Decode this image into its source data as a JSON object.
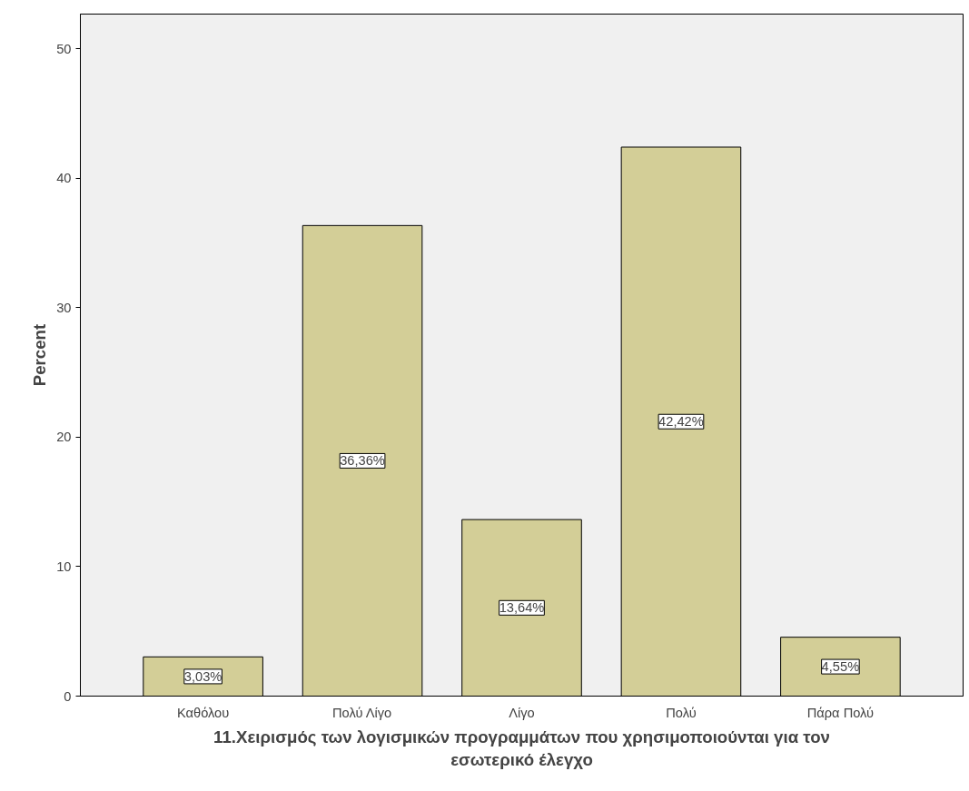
{
  "chart_data": {
    "type": "bar",
    "xlabel": "11.Χειρισμός των λογισμικών προγραμμάτων που χρησιμοποιούνται για τον\nεσωτερικό έλεγχο",
    "ylabel": "Percent",
    "categories": [
      "Καθόλου",
      "Πολύ Λίγο",
      "Λίγο",
      "Πολύ",
      "Πάρα Πολύ"
    ],
    "values": [
      3.03,
      36.36,
      13.64,
      42.42,
      4.55
    ],
    "value_labels": [
      "3,03%",
      "36,36%",
      "13,64%",
      "42,42%",
      "4,55%"
    ],
    "color": "#d3ce97",
    "ylim": [
      0,
      52.7
    ],
    "yticks": [
      0,
      10,
      20,
      30,
      40,
      50
    ],
    "grid": false
  }
}
